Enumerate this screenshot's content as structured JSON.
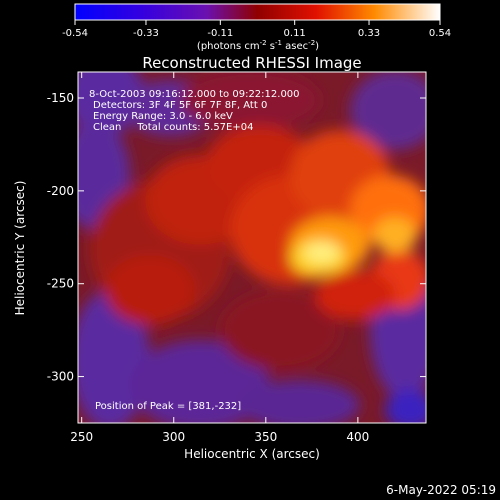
{
  "colorbar": {
    "ticks": [
      "-0.54",
      "-0.33",
      "-0.11",
      "0.11",
      "0.33",
      "0.54"
    ],
    "units_main": "(photons cm",
    "units_exp1": "-2",
    "units_mid": " s",
    "units_exp2": "-1",
    "units_end": " asec",
    "units_exp3": "-2",
    "units_close": ")"
  },
  "chart_data": {
    "type": "heatmap",
    "title": "Reconstructed RHESSI Image",
    "xlabel": "Heliocentric X (arcsec)",
    "ylabel": "Heliocentric Y (arcsec)",
    "xlim": [
      248,
      437
    ],
    "ylim": [
      -325,
      -136
    ],
    "x_ticks": [
      "250",
      "300",
      "350",
      "400"
    ],
    "y_ticks": [
      "-150",
      "-200",
      "-250",
      "-300"
    ],
    "x_tick_values": [
      250,
      300,
      350,
      400
    ],
    "y_tick_values": [
      -150,
      -200,
      -250,
      -300
    ],
    "value_range": [
      -0.54,
      0.54
    ],
    "peak": [
      381,
      -232
    ],
    "annotations": [
      "8-Oct-2003 09:16:12.000 to 09:22:12.000",
      "Detectors: 3F 4F 5F 6F 7F 8F, Att 0",
      "Energy Range: 3.0 - 6.0 keV",
      "Clean     Total counts: 5.57E+04",
      "Position of Peak = [381,-232]"
    ]
  },
  "footer": {
    "date": "6-May-2022 05:19"
  }
}
